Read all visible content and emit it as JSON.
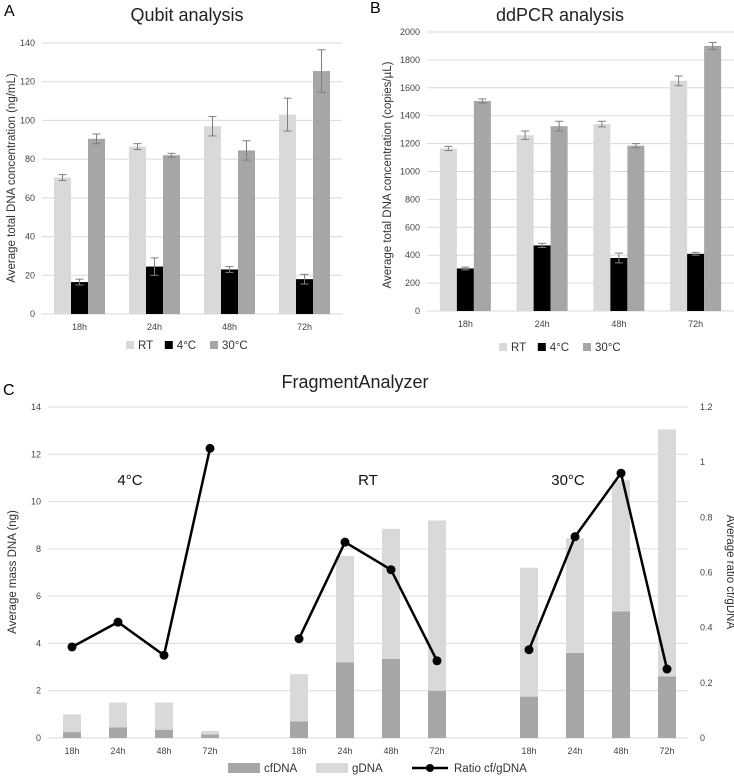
{
  "colors": {
    "rt": "#d9d9d9",
    "cold": "#000000",
    "warm": "#a6a6a6",
    "cfdna": "#a6a6a6",
    "gdna": "#d9d9d9",
    "ratio": "#000000",
    "grid": "#d9d9d9",
    "err": "#7f7f7f"
  },
  "chart_data": [
    {
      "panel": "A",
      "type": "bar",
      "title": "Qubit analysis",
      "ylabel": "Average total DNA concentration (ng/mL)",
      "xlabel": "",
      "ylim": [
        0,
        140
      ],
      "yticks": [
        0,
        20,
        40,
        60,
        80,
        100,
        120,
        140
      ],
      "categories": [
        "18h",
        "24h",
        "48h",
        "72h"
      ],
      "legend_position": "bottom",
      "series": [
        {
          "name": "RT",
          "color_key": "rt",
          "values": [
            70.5,
            86.5,
            97,
            103
          ],
          "errors": [
            1.5,
            1.5,
            5,
            8.5
          ]
        },
        {
          "name": "4°C",
          "color_key": "cold",
          "values": [
            16.5,
            24.5,
            23,
            18
          ],
          "errors": [
            1.5,
            4.5,
            1.5,
            2.5
          ]
        },
        {
          "name": "30°C",
          "color_key": "warm",
          "values": [
            90.5,
            82,
            84.5,
            125.5
          ],
          "errors": [
            2.5,
            1,
            5,
            11
          ]
        }
      ]
    },
    {
      "panel": "B",
      "type": "bar",
      "title": "ddPCR analysis",
      "ylabel": "Average total DNA concentration (copies/µL)",
      "xlabel": "",
      "ylim": [
        0,
        2000
      ],
      "yticks": [
        0,
        200,
        400,
        600,
        800,
        1000,
        1200,
        1400,
        1600,
        1800,
        2000
      ],
      "categories": [
        "18h",
        "24h",
        "48h",
        "72h"
      ],
      "legend_position": "bottom",
      "series": [
        {
          "name": "RT",
          "color_key": "rt",
          "values": [
            1165,
            1260,
            1340,
            1650
          ],
          "errors": [
            15,
            30,
            20,
            35
          ]
        },
        {
          "name": "4°C",
          "color_key": "cold",
          "values": [
            305,
            470,
            380,
            410
          ],
          "errors": [
            10,
            15,
            35,
            10
          ]
        },
        {
          "name": "30°C",
          "color_key": "warm",
          "values": [
            1505,
            1325,
            1185,
            1900
          ],
          "errors": [
            15,
            35,
            15,
            25
          ]
        }
      ]
    },
    {
      "panel": "C",
      "type": "bar",
      "title": "FragmentAnalyzer",
      "ylabel": "Average mass DNA (ng)",
      "y2label": "Average ratio cf/gDNA",
      "ylim": [
        0,
        14
      ],
      "yticks": [
        0,
        2,
        4,
        6,
        8,
        10,
        12,
        14
      ],
      "y2lim": [
        0,
        1.2
      ],
      "y2ticks": [
        0,
        0.2,
        0.4,
        0.6,
        0.8,
        1,
        1.2
      ],
      "legend_position": "bottom",
      "groups": [
        {
          "label": "4°C",
          "categories": [
            "18h",
            "24h",
            "48h",
            "72h"
          ],
          "cfdna": [
            0.25,
            0.45,
            0.35,
            0.15
          ],
          "gdna": [
            0.75,
            1.05,
            1.15,
            0.15
          ],
          "ratio": [
            0.33,
            0.42,
            0.3,
            1.05
          ]
        },
        {
          "label": "RT",
          "categories": [
            "18h",
            "24h",
            "48h",
            "72h"
          ],
          "cfdna": [
            0.7,
            3.2,
            3.35,
            2.0
          ],
          "gdna": [
            2.0,
            4.5,
            5.5,
            7.2
          ],
          "ratio": [
            0.36,
            0.71,
            0.61,
            0.28
          ]
        },
        {
          "label": "30°C",
          "categories": [
            "18h",
            "24h",
            "48h",
            "72h"
          ],
          "cfdna": [
            1.75,
            3.6,
            5.35,
            2.6
          ],
          "gdna": [
            5.45,
            4.85,
            5.55,
            10.45
          ],
          "ratio": [
            0.32,
            0.73,
            0.96,
            0.25
          ]
        }
      ],
      "series_names": {
        "cfdna": "cfDNA",
        "gdna": "gDNA",
        "ratio": "Ratio cf/gDNA"
      }
    }
  ]
}
